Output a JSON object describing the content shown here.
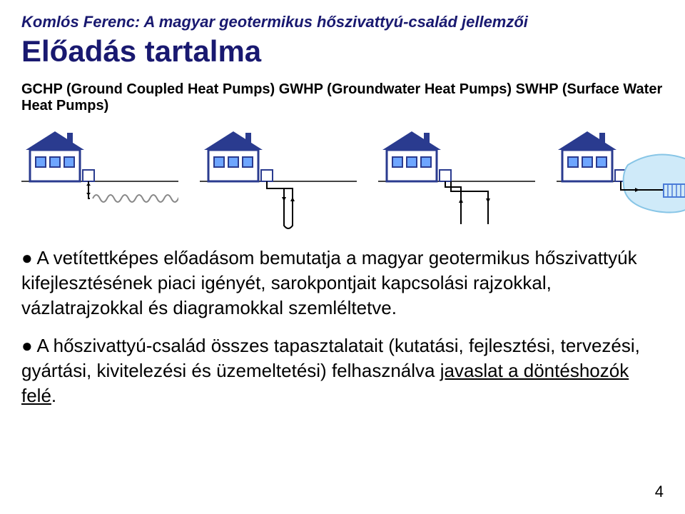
{
  "header": "Komlós Ferenc: A magyar geotermikus hőszivattyú-család jellemzői",
  "title": "Előadás tartalma",
  "subtitle": "GCHP (Ground Coupled Heat Pumps) GWHP (Groundwater Heat Pumps) SWHP (Surface Water Heat Pumps)",
  "bullet1": "● A vetítettképes előadásom bemutatja a magyar geotermikus hőszivattyúk kifejlesztésének piaci igényét, sarokpontjait kapcsolási rajzokkal, vázlatrajzokkal és diagramokkal szemléltetve.",
  "bullet2_pre": "● A hőszivattyú-család összes tapasztalatait (kutatási, fejlesztési, tervezési, gyártási, kivitelezési és üzemeltetési) felhasználva ",
  "bullet2_u": "javaslat a döntéshozók felé",
  "bullet2_post": ".",
  "pagenum": "4",
  "diagrams": {
    "house": {
      "wall_fill": "#ffffff",
      "wall_stroke": "#2a3b8f",
      "roof_fill": "#2a3b8f",
      "window_fill": "#6ea6ff",
      "ground_stroke": "#444444",
      "pipe_stroke": "#000000",
      "coil_stroke": "#888888",
      "water_fill": "#cfeaf9",
      "water_stroke": "#87c5e6",
      "grate_stroke": "#4a7bd8"
    },
    "cells": [
      {
        "type": "horizontal_loop"
      },
      {
        "type": "vertical_borehole"
      },
      {
        "type": "open_well"
      },
      {
        "type": "surface_water"
      }
    ]
  }
}
